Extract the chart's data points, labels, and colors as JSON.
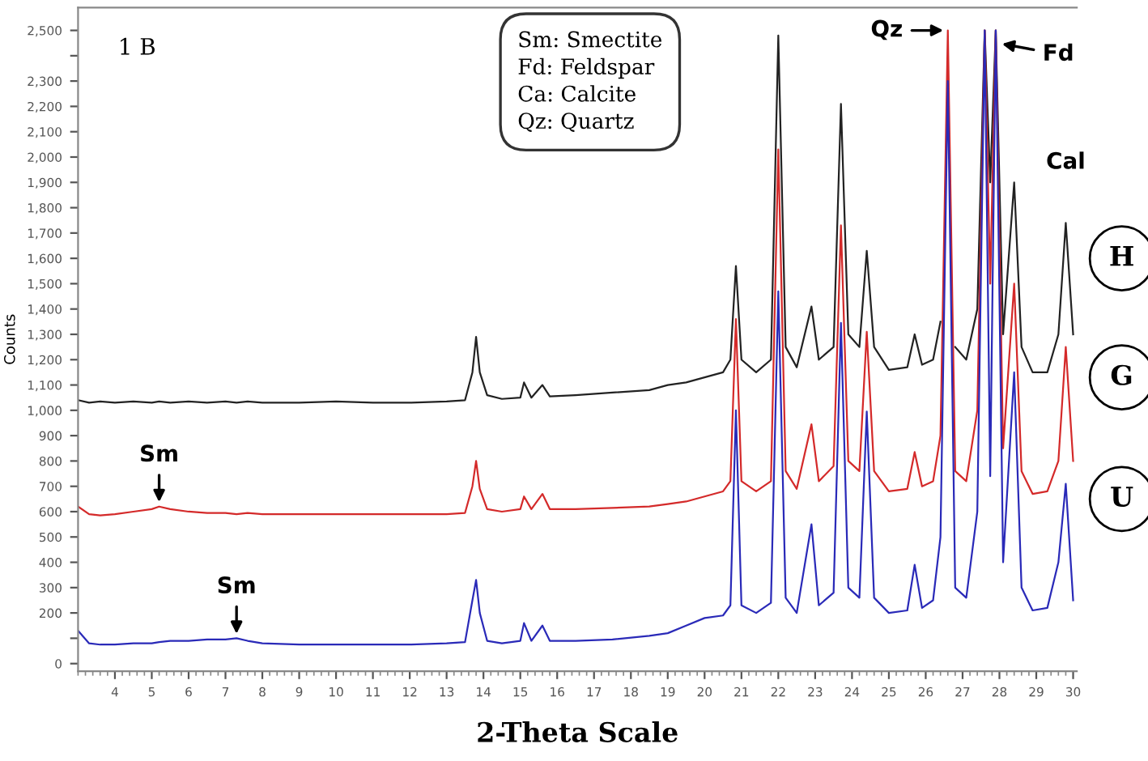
{
  "chart_data": {
    "type": "line",
    "xlabel": "2-Theta Scale",
    "ylabel": "Counts",
    "x": [
      3.0,
      3.3,
      3.6,
      4,
      4.5,
      5,
      5.2,
      5.5,
      6,
      6.5,
      7,
      7.3,
      7.6,
      8,
      9,
      10,
      11,
      12,
      13,
      13.5,
      13.7,
      13.8,
      13.9,
      14.1,
      14.5,
      15.0,
      15.1,
      15.3,
      15.6,
      15.8,
      16.5,
      17.5,
      18.5,
      19.0,
      19.5,
      20.0,
      20.5,
      20.7,
      20.85,
      21.0,
      21.4,
      21.8,
      22.0,
      22.2,
      22.5,
      22.9,
      23.1,
      23.5,
      23.7,
      23.9,
      24.2,
      24.4,
      24.6,
      25.0,
      25.5,
      25.7,
      25.9,
      26.2,
      26.4,
      26.6,
      26.8,
      27.1,
      27.4,
      27.6,
      27.75,
      27.9,
      28.1,
      28.4,
      28.6,
      28.9,
      29.3,
      29.6,
      29.8,
      30.0
    ],
    "series": [
      {
        "name": "H",
        "color": "#222222",
        "values": [
          1040,
          1030,
          1035,
          1030,
          1035,
          1030,
          1035,
          1030,
          1035,
          1030,
          1035,
          1030,
          1035,
          1030,
          1030,
          1035,
          1030,
          1030,
          1035,
          1040,
          1150,
          1290,
          1150,
          1060,
          1045,
          1050,
          1110,
          1050,
          1100,
          1055,
          1060,
          1070,
          1080,
          1100,
          1110,
          1130,
          1150,
          1200,
          1570,
          1200,
          1150,
          1200,
          2480,
          1250,
          1170,
          1410,
          1200,
          1250,
          2210,
          1300,
          1250,
          1630,
          1250,
          1160,
          1170,
          1300,
          1180,
          1200,
          1350,
          null,
          1250,
          1200,
          1400,
          2500,
          1900,
          2500,
          1300,
          1900,
          1250,
          1150,
          1150,
          1300,
          1740,
          1300
        ]
      },
      {
        "name": "G",
        "color": "#d42a2a",
        "values": [
          620,
          590,
          585,
          590,
          600,
          610,
          620,
          610,
          600,
          595,
          595,
          590,
          595,
          590,
          590,
          590,
          590,
          590,
          590,
          595,
          700,
          800,
          690,
          610,
          600,
          610,
          660,
          610,
          670,
          610,
          610,
          615,
          620,
          630,
          640,
          660,
          680,
          720,
          1360,
          720,
          680,
          720,
          2030,
          760,
          690,
          945,
          720,
          780,
          1730,
          800,
          760,
          1310,
          760,
          680,
          690,
          835,
          700,
          720,
          900,
          2500,
          760,
          720,
          1000,
          2500,
          1500,
          2500,
          850,
          1500,
          760,
          670,
          680,
          800,
          1250,
          800
        ]
      },
      {
        "name": "U",
        "color": "#2a2ab8",
        "values": [
          130,
          80,
          75,
          75,
          80,
          80,
          85,
          90,
          90,
          95,
          95,
          100,
          90,
          80,
          75,
          75,
          75,
          75,
          80,
          85,
          250,
          330,
          200,
          90,
          80,
          90,
          160,
          90,
          150,
          90,
          90,
          95,
          110,
          120,
          150,
          180,
          190,
          230,
          1000,
          230,
          200,
          240,
          1470,
          260,
          200,
          550,
          230,
          280,
          1345,
          300,
          260,
          995,
          260,
          200,
          210,
          390,
          220,
          250,
          500,
          2300,
          300,
          260,
          600,
          2500,
          740,
          2500,
          400,
          1150,
          300,
          210,
          220,
          400,
          710,
          250
        ]
      }
    ],
    "xlim": [
      3.0,
      30.1
    ],
    "xticks": [
      4,
      5,
      6,
      7,
      8,
      9,
      10,
      11,
      12,
      13,
      14,
      15,
      16,
      17,
      18,
      19,
      20,
      21,
      22,
      23,
      24,
      25,
      26,
      27,
      28,
      29,
      30
    ],
    "ylim": [
      -30,
      2590
    ],
    "yticks": [
      0,
      {
        "value": 100,
        "label": null
      },
      200,
      300,
      400,
      500,
      600,
      700,
      800,
      900,
      {
        "value": 1000,
        "label": "1,000"
      },
      {
        "value": 1100,
        "label": "1,100"
      },
      {
        "value": 1200,
        "label": "1,200"
      },
      {
        "value": 1300,
        "label": "1,300"
      },
      {
        "value": 1400,
        "label": "1,400"
      },
      {
        "value": 1500,
        "label": "1,500"
      },
      {
        "value": 1600,
        "label": "1,600"
      },
      {
        "value": 1700,
        "label": "1,700"
      },
      {
        "value": 1800,
        "label": "1,800"
      },
      {
        "value": 1900,
        "label": "1,900"
      },
      {
        "value": 2000,
        "label": "2,000"
      },
      {
        "value": 2100,
        "label": "2,100"
      },
      {
        "value": 2200,
        "label": "2,200"
      },
      {
        "value": 2300,
        "label": "2,300"
      },
      {
        "value": 2400,
        "label": null
      },
      {
        "value": 2500,
        "label": "2,500"
      }
    ],
    "grid": false,
    "legend": false,
    "annotations": [
      "1 B",
      "Sm: Smectite",
      "Fd: Feldspar",
      "Ca: Calcite",
      "Qz: Quartz",
      {
        "text": "Sm",
        "x": 5.2,
        "y": 620
      },
      {
        "text": "Sm",
        "x": 7.3,
        "y": 100
      },
      {
        "text": "Qz",
        "x": 26.6,
        "y": 2500
      },
      {
        "text": "Fd",
        "x": 27.95,
        "y": 2450
      },
      {
        "text": "Cal",
        "x": 29.8,
        "y": 1740
      }
    ]
  }
}
